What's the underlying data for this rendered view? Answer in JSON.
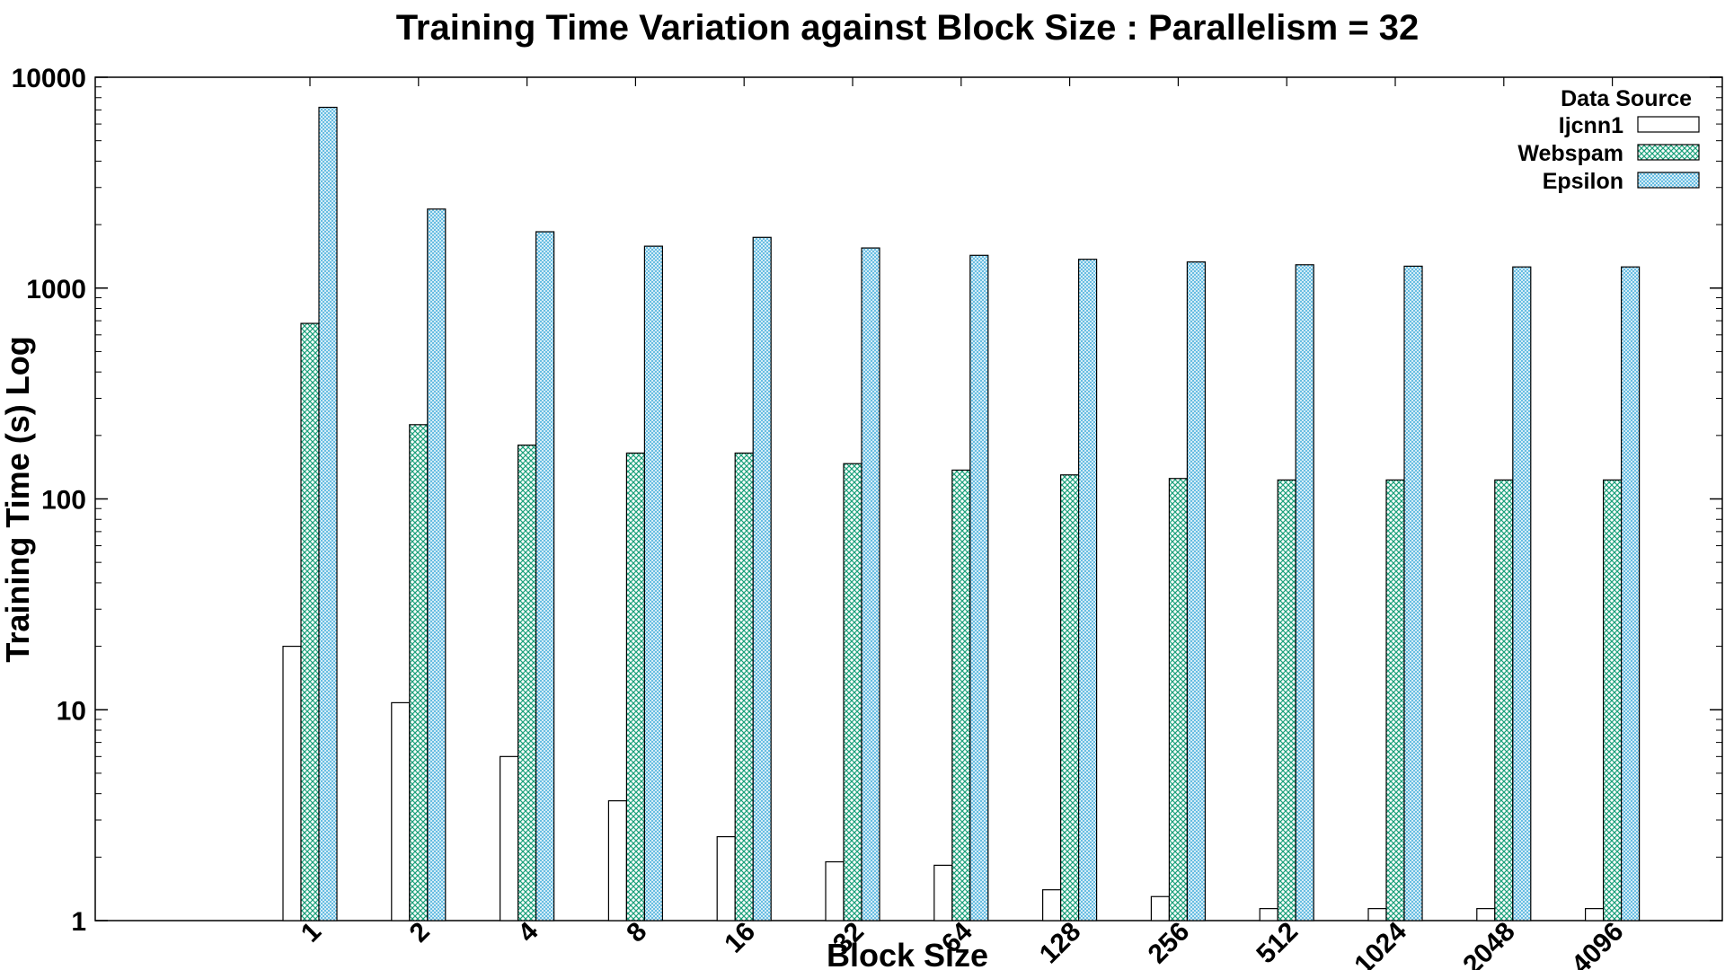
{
  "chart_data": {
    "type": "bar",
    "title": "Training Time Variation against Block Size : Parallelism = 32",
    "xlabel": "Block Size",
    "ylabel": "Training Time (s) Log",
    "y_scale": "log",
    "ylim": [
      1,
      10000
    ],
    "y_ticks": [
      1,
      10,
      100,
      1000,
      10000
    ],
    "y_tick_labels": [
      "1",
      "10",
      "100",
      "1000",
      "10000"
    ],
    "categories": [
      "1",
      "2",
      "4",
      "8",
      "16",
      "32",
      "64",
      "128",
      "256",
      "512",
      "1024",
      "2048",
      "4096"
    ],
    "legend": {
      "title": "Data Source",
      "position": "top-right"
    },
    "grid": false,
    "series": [
      {
        "name": "Ijcnn1",
        "values": [
          20,
          10.8,
          6,
          3.7,
          2.5,
          1.9,
          1.83,
          1.4,
          1.3,
          1.14,
          1.14,
          1.14,
          1.14
        ],
        "color": "#ffffff",
        "pattern": "none"
      },
      {
        "name": "Webspam",
        "values": [
          680,
          225,
          180,
          165,
          165,
          147,
          137,
          130,
          125,
          123,
          123,
          123,
          123
        ],
        "color": "#1aa07a",
        "pattern": "crosshatch"
      },
      {
        "name": "Epsilon",
        "values": [
          7200,
          2370,
          1850,
          1580,
          1740,
          1550,
          1430,
          1370,
          1330,
          1290,
          1270,
          1260,
          1260
        ],
        "color": "#5bb8e0",
        "pattern": "fine-crosshatch"
      }
    ]
  }
}
